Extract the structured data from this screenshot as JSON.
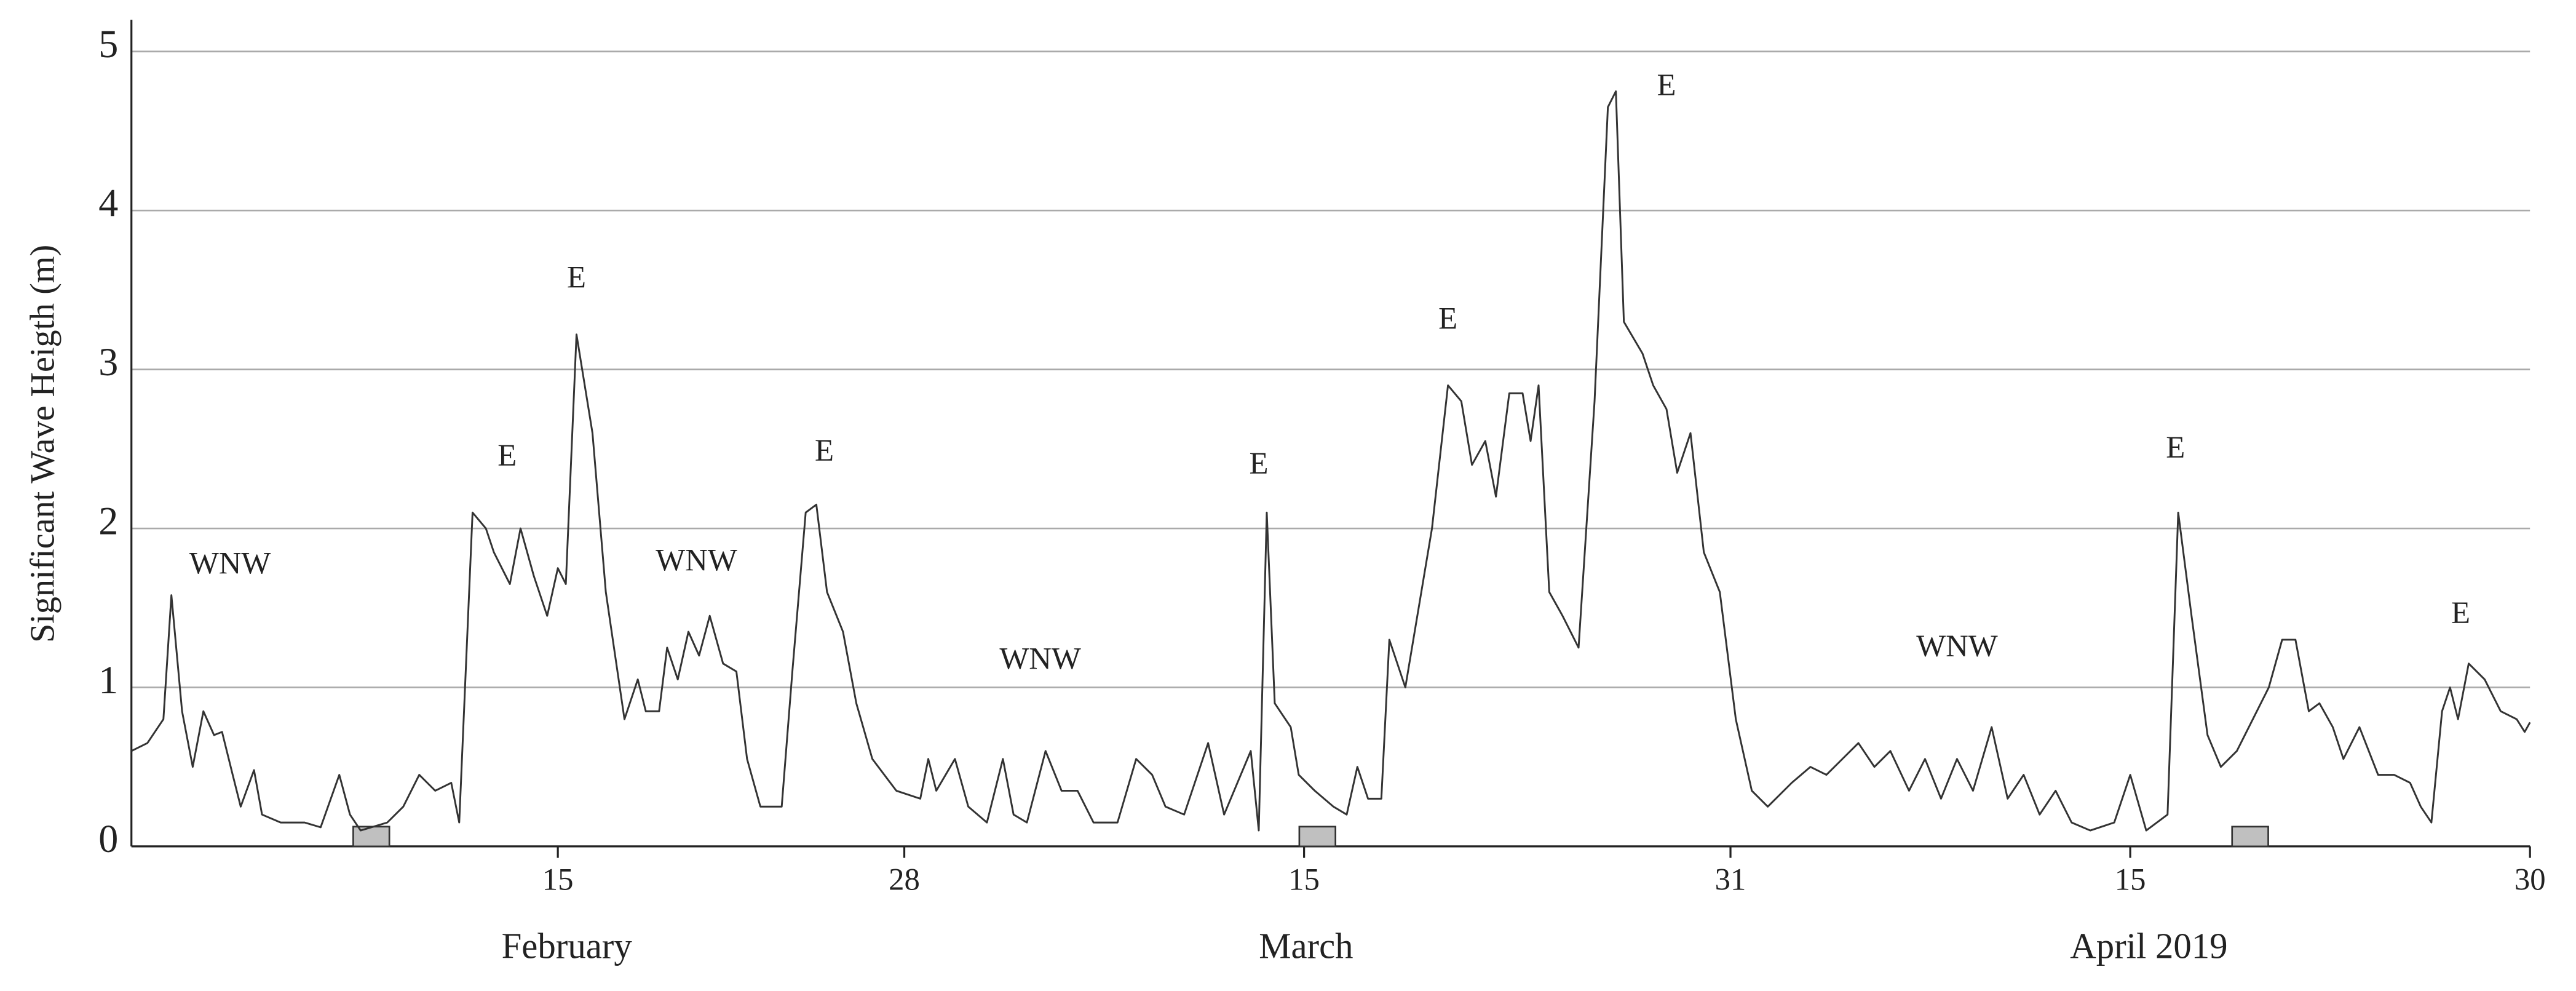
{
  "chart_data": {
    "type": "line",
    "y_label": "Significant Wave Heigth (m)",
    "x_group_labels": [
      "February",
      "March",
      "April 2019"
    ],
    "xlim": [
      30,
      120
    ],
    "xticks": [
      {
        "value": 46,
        "label": "15"
      },
      {
        "value": 59,
        "label": "28"
      },
      {
        "value": 74,
        "label": "15"
      },
      {
        "value": 90,
        "label": "31"
      },
      {
        "value": 105,
        "label": "15"
      },
      {
        "value": 120,
        "label": "30"
      }
    ],
    "ylim": [
      0,
      5.2
    ],
    "yticks": [
      0,
      1,
      2,
      3,
      4,
      5
    ],
    "grid": true,
    "color": "#333333",
    "x": [
      30.0,
      30.6,
      31.2,
      31.5,
      31.9,
      32.3,
      32.7,
      33.1,
      33.4,
      33.8,
      34.1,
      34.6,
      34.9,
      35.6,
      36.5,
      37.1,
      37.8,
      38.2,
      38.6,
      39.6,
      40.2,
      40.8,
      41.4,
      42.0,
      42.3,
      42.8,
      43.3,
      43.6,
      44.2,
      44.6,
      45.1,
      45.6,
      46.0,
      46.3,
      46.7,
      47.3,
      47.8,
      48.5,
      49.0,
      49.3,
      49.8,
      50.1,
      50.5,
      50.9,
      51.3,
      51.7,
      52.2,
      52.7,
      53.1,
      53.6,
      54.4,
      54.8,
      55.3,
      55.7,
      56.1,
      56.7,
      57.2,
      57.8,
      58.7,
      59.6,
      59.9,
      60.2,
      60.9,
      61.4,
      62.1,
      62.7,
      63.1,
      63.6,
      64.3,
      64.9,
      65.5,
      66.1,
      67.0,
      67.7,
      68.3,
      68.8,
      69.5,
      70.4,
      71.0,
      72.0,
      72.3,
      72.6,
      72.9,
      73.5,
      73.8,
      74.4,
      75.1,
      75.6,
      76.0,
      76.4,
      76.9,
      77.2,
      77.8,
      78.3,
      78.8,
      79.4,
      79.9,
      80.3,
      80.8,
      81.2,
      81.7,
      82.2,
      82.5,
      82.8,
      83.2,
      83.7,
      84.3,
      84.9,
      85.4,
      85.7,
      86.0,
      86.7,
      87.1,
      87.6,
      88.0,
      88.5,
      89.0,
      89.6,
      90.2,
      90.8,
      91.4,
      92.3,
      93.0,
      93.6,
      94.2,
      94.8,
      95.4,
      96.0,
      96.7,
      97.3,
      97.9,
      98.5,
      99.1,
      99.8,
      100.4,
      101.0,
      101.6,
      102.2,
      102.8,
      103.5,
      104.4,
      105.0,
      105.6,
      106.4,
      106.8,
      107.3,
      107.9,
      108.4,
      109.0,
      109.6,
      110.2,
      110.7,
      111.2,
      111.7,
      112.1,
      112.6,
      113.0,
      113.6,
      114.3,
      114.9,
      115.5,
      115.9,
      116.3,
      116.7,
      117.0,
      117.3,
      117.7,
      118.3,
      118.9,
      119.5,
      119.8,
      120.0
    ],
    "values": [
      0.6,
      0.65,
      0.8,
      1.58,
      0.85,
      0.5,
      0.85,
      0.7,
      0.72,
      0.45,
      0.25,
      0.48,
      0.2,
      0.15,
      0.15,
      0.12,
      0.45,
      0.2,
      0.1,
      0.15,
      0.25,
      0.45,
      0.35,
      0.4,
      0.15,
      2.1,
      2.0,
      1.85,
      1.65,
      2.0,
      1.7,
      1.45,
      1.75,
      1.65,
      3.22,
      2.6,
      1.6,
      0.8,
      1.05,
      0.85,
      0.85,
      1.25,
      1.05,
      1.35,
      1.2,
      1.45,
      1.15,
      1.1,
      0.55,
      0.25,
      0.25,
      1.1,
      2.1,
      2.15,
      1.6,
      1.35,
      0.9,
      0.55,
      0.35,
      0.3,
      0.55,
      0.35,
      0.55,
      0.25,
      0.15,
      0.55,
      0.2,
      0.15,
      0.6,
      0.35,
      0.35,
      0.15,
      0.15,
      0.55,
      0.45,
      0.25,
      0.2,
      0.65,
      0.2,
      0.6,
      0.1,
      2.1,
      0.9,
      0.75,
      0.45,
      0.35,
      0.25,
      0.2,
      0.5,
      0.3,
      0.3,
      1.3,
      1.0,
      1.5,
      2.0,
      2.9,
      2.8,
      2.4,
      2.55,
      2.2,
      2.85,
      2.85,
      2.55,
      2.9,
      1.6,
      1.45,
      1.25,
      2.8,
      4.65,
      4.75,
      3.3,
      3.1,
      2.9,
      2.75,
      2.35,
      2.6,
      1.85,
      1.6,
      0.8,
      0.35,
      0.25,
      0.4,
      0.5,
      0.45,
      0.55,
      0.65,
      0.5,
      0.6,
      0.35,
      0.55,
      0.3,
      0.55,
      0.35,
      0.75,
      0.3,
      0.45,
      0.2,
      0.35,
      0.15,
      0.1,
      0.15,
      0.45,
      0.1,
      0.2,
      2.1,
      1.45,
      0.7,
      0.5,
      0.6,
      0.8,
      1.0,
      1.3,
      1.3,
      0.85,
      0.9,
      0.75,
      0.55,
      0.75,
      0.45,
      0.45,
      0.4,
      0.25,
      0.15,
      0.85,
      1.0,
      0.8,
      1.15,
      1.05,
      0.85,
      0.8,
      0.72,
      0.78
    ],
    "highlight_x": [
      39,
      74.5,
      109.5
    ],
    "annotations": [
      {
        "text": "WNW",
        "x": 33.7,
        "y": 1.76
      },
      {
        "text": "E",
        "x": 44.1,
        "y": 2.44
      },
      {
        "text": "E",
        "x": 46.7,
        "y": 3.56
      },
      {
        "text": "WNW",
        "x": 51.2,
        "y": 1.78
      },
      {
        "text": "E",
        "x": 56.0,
        "y": 2.47
      },
      {
        "text": "WNW",
        "x": 64.1,
        "y": 1.16
      },
      {
        "text": "E",
        "x": 72.3,
        "y": 2.39
      },
      {
        "text": "E",
        "x": 79.4,
        "y": 3.3
      },
      {
        "text": "E",
        "x": 87.6,
        "y": 4.77
      },
      {
        "text": "WNW",
        "x": 98.5,
        "y": 1.24
      },
      {
        "text": "E",
        "x": 106.7,
        "y": 2.49
      },
      {
        "text": "E",
        "x": 117.4,
        "y": 1.45
      }
    ]
  }
}
